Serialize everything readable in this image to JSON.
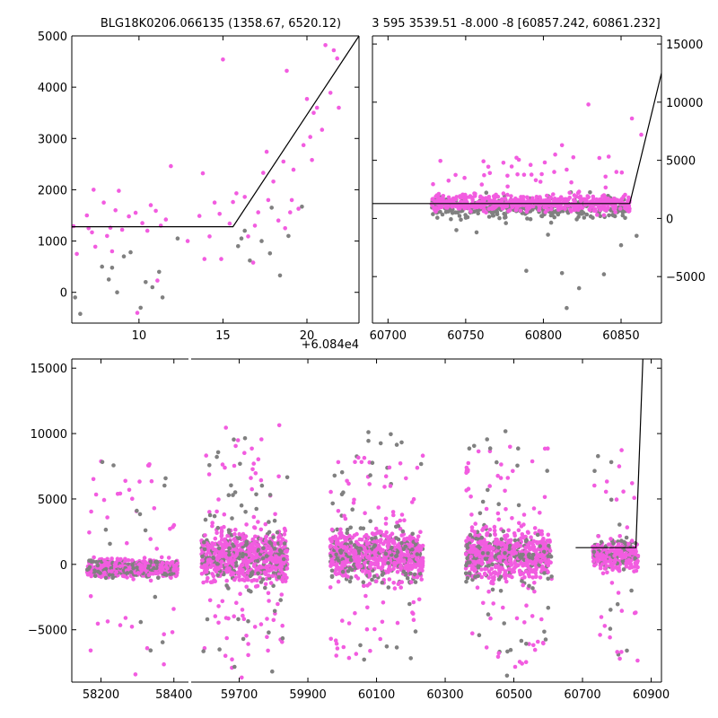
{
  "colors": {
    "magenta": "#f25ce0",
    "gray": "#808080",
    "model": "#000000"
  },
  "chart_data": [
    {
      "type": "scatter",
      "panel": "top-left zoom",
      "title": "BLG18K0206.066135 (1358.67, 6520.12)",
      "x_offset_label": "+6.084e4",
      "xlim": [
        6,
        23.1
      ],
      "ylim": [
        -600,
        5000
      ],
      "xticks": [
        10,
        15,
        20
      ],
      "yticks": [
        0,
        1000,
        2000,
        3000,
        4000,
        5000
      ],
      "yaxis_side": "left",
      "model_line": [
        [
          6,
          1280
        ],
        [
          15.6,
          1280
        ],
        [
          23.1,
          5000
        ]
      ],
      "series": [
        {
          "color": "gray",
          "points": [
            [
              6.2,
              -100
            ],
            [
              6.5,
              -420
            ],
            [
              7.8,
              500
            ],
            [
              8.2,
              250
            ],
            [
              8.4,
              480
            ],
            [
              8.7,
              0
            ],
            [
              9.1,
              700
            ],
            [
              9.5,
              780
            ],
            [
              10.1,
              -300
            ],
            [
              10.4,
              200
            ],
            [
              10.8,
              100
            ],
            [
              11.2,
              400
            ],
            [
              11.4,
              -100
            ],
            [
              15.9,
              900
            ],
            [
              16.1,
              1050
            ],
            [
              16.6,
              620
            ],
            [
              17.3,
              1000
            ],
            [
              17.8,
              760
            ],
            [
              18.4,
              330
            ],
            [
              18.9,
              1100
            ],
            [
              19.7,
              1670
            ],
            [
              16.3,
              1200
            ],
            [
              12.3,
              1050
            ],
            [
              17.9,
              1650
            ]
          ]
        },
        {
          "color": "magenta",
          "points": [
            [
              6.1,
              1290
            ],
            [
              6.3,
              750
            ],
            [
              6.9,
              1500
            ],
            [
              7.0,
              1250
            ],
            [
              7.2,
              1170
            ],
            [
              7.4,
              890
            ],
            [
              7.9,
              1750
            ],
            [
              8.1,
              1100
            ],
            [
              8.3,
              1260
            ],
            [
              8.6,
              1600
            ],
            [
              8.8,
              1980
            ],
            [
              9.0,
              1220
            ],
            [
              9.4,
              1480
            ],
            [
              9.8,
              1550
            ],
            [
              10.2,
              1350
            ],
            [
              10.5,
              1200
            ],
            [
              10.7,
              1700
            ],
            [
              11.0,
              1590
            ],
            [
              11.3,
              1300
            ],
            [
              11.6,
              1420
            ],
            [
              11.9,
              2460
            ],
            [
              13.6,
              1490
            ],
            [
              13.8,
              2320
            ],
            [
              14.2,
              1090
            ],
            [
              14.5,
              1750
            ],
            [
              14.8,
              1530
            ],
            [
              15.0,
              4540
            ],
            [
              15.4,
              1340
            ],
            [
              15.6,
              1760
            ],
            [
              15.8,
              1930
            ],
            [
              16.3,
              1860
            ],
            [
              16.5,
              1090
            ],
            [
              16.9,
              1300
            ],
            [
              17.1,
              1560
            ],
            [
              17.4,
              2330
            ],
            [
              17.7,
              1800
            ],
            [
              18.0,
              2160
            ],
            [
              18.3,
              1400
            ],
            [
              18.6,
              2550
            ],
            [
              18.8,
              4320
            ],
            [
              19.0,
              1560
            ],
            [
              19.2,
              2390
            ],
            [
              19.5,
              1630
            ],
            [
              19.8,
              2870
            ],
            [
              20.0,
              3770
            ],
            [
              20.2,
              3030
            ],
            [
              20.4,
              3500
            ],
            [
              20.6,
              3600
            ],
            [
              20.9,
              3170
            ],
            [
              21.1,
              4820
            ],
            [
              21.4,
              3890
            ],
            [
              21.6,
              4720
            ],
            [
              21.8,
              4560
            ],
            [
              21.9,
              3600
            ],
            [
              8.4,
              800
            ],
            [
              7.3,
              2000
            ],
            [
              13.9,
              650
            ],
            [
              14.9,
              650
            ],
            [
              16.8,
              580
            ],
            [
              18.7,
              1250
            ],
            [
              20.3,
              2580
            ],
            [
              19.1,
              1800
            ],
            [
              9.9,
              -400
            ],
            [
              11.1,
              230
            ],
            [
              12.9,
              1000
            ],
            [
              17.6,
              2740
            ]
          ]
        }
      ]
    },
    {
      "type": "scatter",
      "panel": "top-right",
      "title": "3 595 3539.51 -8.000 -8 [60857.242, 60861.232]",
      "xlim": [
        60690,
        60876
      ],
      "ylim": [
        -9000,
        15700
      ],
      "xticks": [
        60700,
        60750,
        60800,
        60850
      ],
      "yticks": [
        -5000,
        0,
        5000,
        10000,
        15000
      ],
      "yaxis_side": "right",
      "model_line": [
        [
          60690,
          1280
        ],
        [
          60855.6,
          1280
        ],
        [
          60876,
          12500
        ]
      ]
    },
    {
      "type": "scatter",
      "panel": "bottom full light curve",
      "xlim": [
        58120,
        61020
      ],
      "ylim": [
        -9000,
        15700
      ],
      "xtick_labels": [
        "58200",
        "58400",
        "59700",
        "59900",
        "60100",
        "60300",
        "60500",
        "60700",
        "60900"
      ],
      "yticks": [
        -5000,
        0,
        5000,
        10000,
        15000
      ],
      "yaxis_side": "left",
      "model_line": [
        [
          60680,
          1280
        ],
        [
          60855.6,
          1280
        ],
        [
          60876,
          15700
        ]
      ]
    }
  ]
}
